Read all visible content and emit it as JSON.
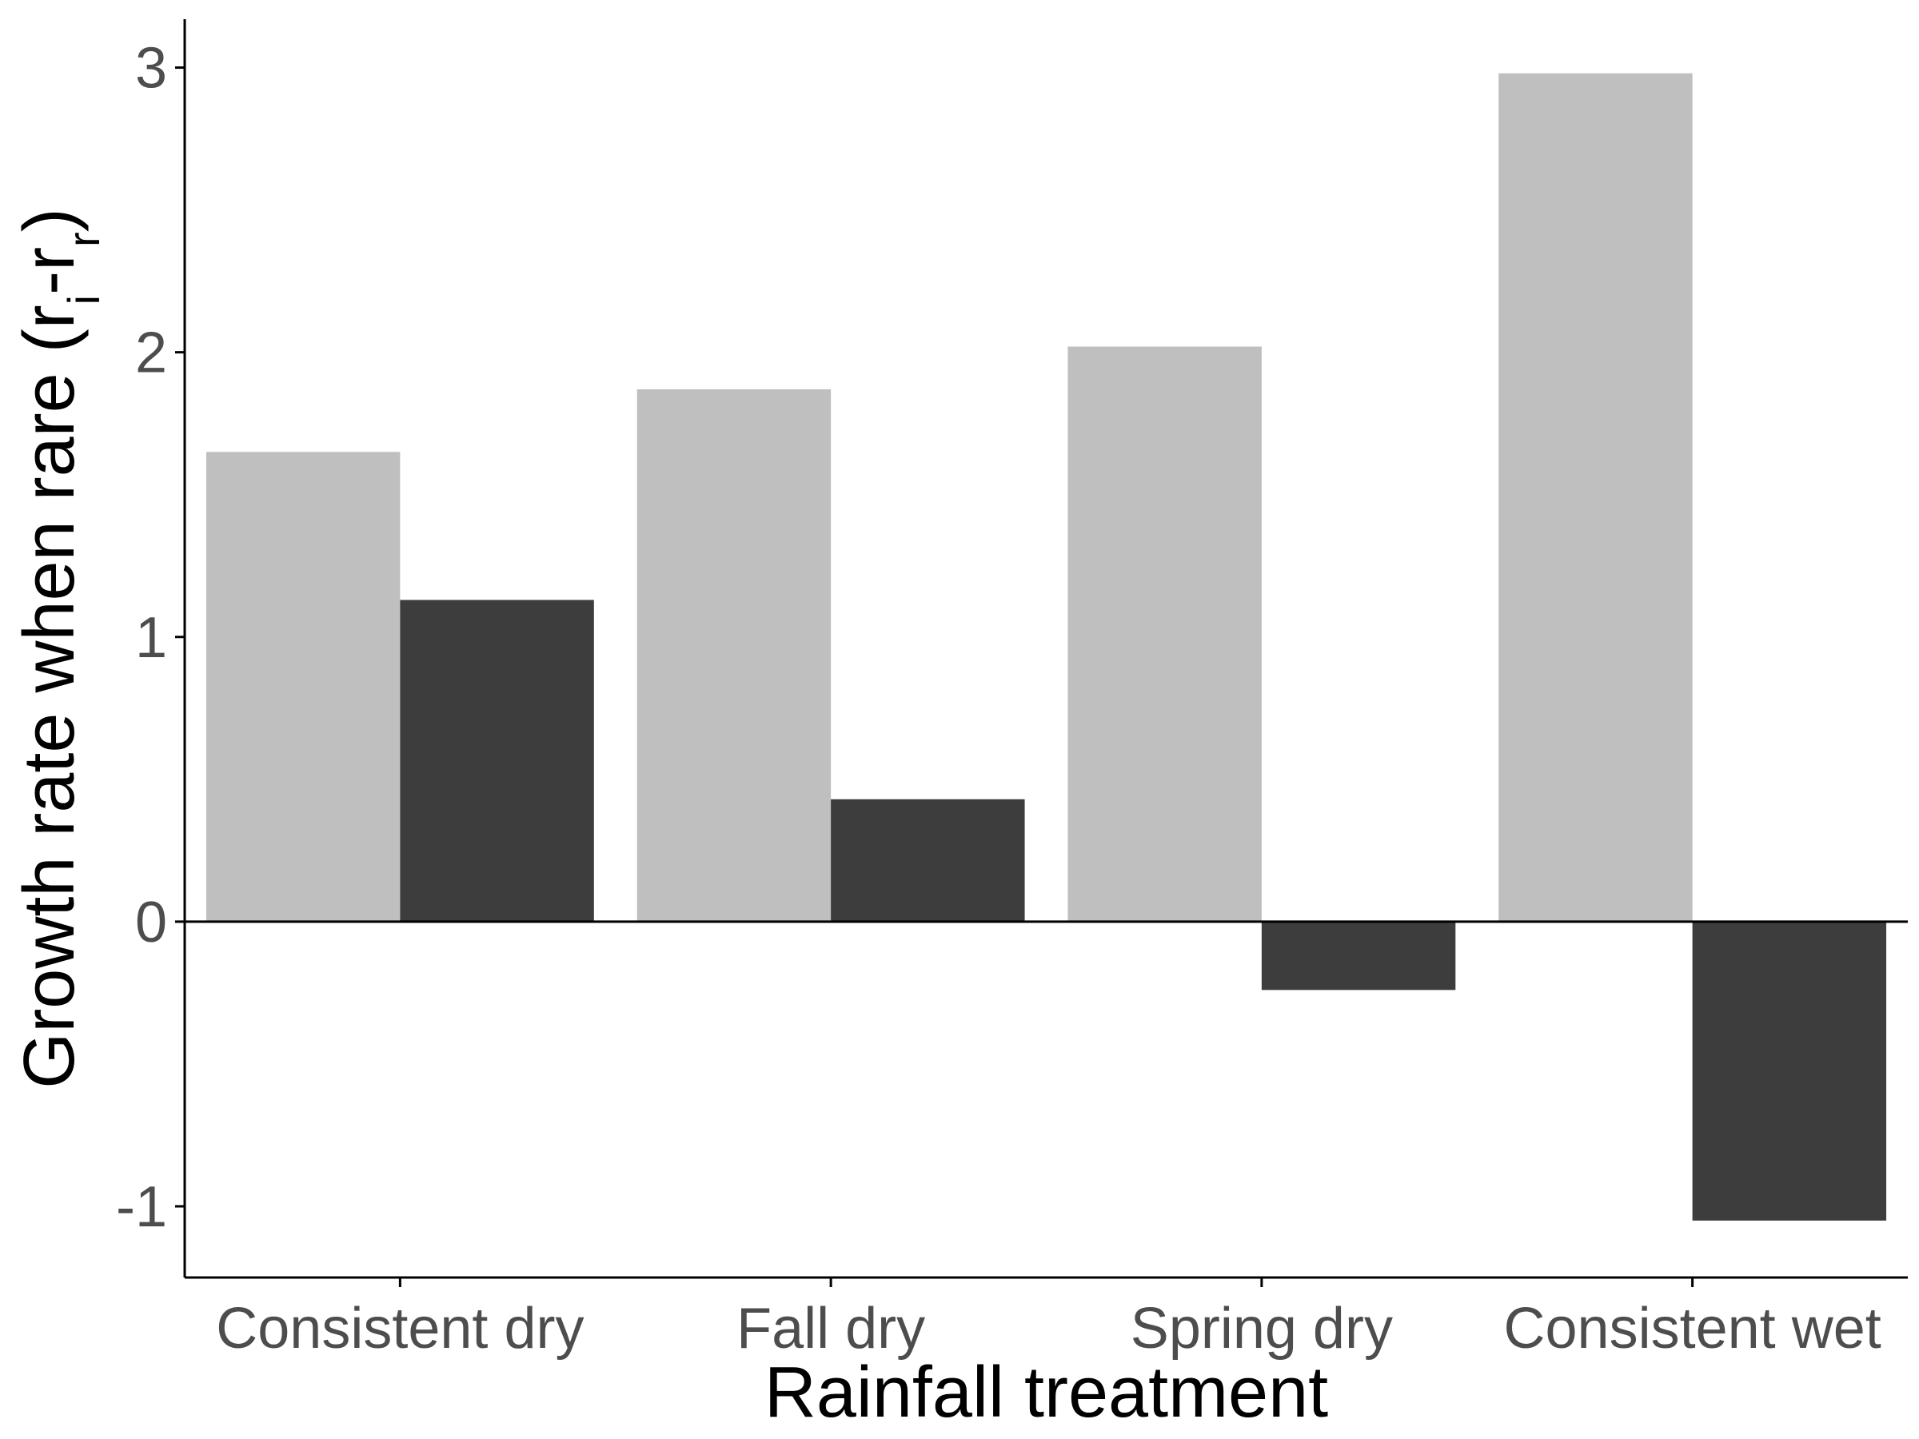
{
  "chart_data": {
    "type": "bar",
    "title": "",
    "xlabel": "Rainfall treatment",
    "ylabel": {
      "text": "Growth rate when rare (r",
      "sub1": "i",
      "mid": "-r",
      "sub2": "r",
      "end": ")"
    },
    "categories": [
      "Consistent dry",
      "Fall dry",
      "Spring dry",
      "Consistent wet"
    ],
    "series": [
      {
        "color": "#bfbfbf",
        "values": [
          1.65,
          1.87,
          2.02,
          2.98
        ]
      },
      {
        "color": "#3d3d3d",
        "values": [
          1.13,
          0.43,
          -0.24,
          -1.05
        ]
      }
    ],
    "ylim": [
      -1.25,
      3.17
    ],
    "yticks": [
      -1,
      0,
      1,
      2,
      3
    ],
    "ytick_labels": [
      "-1",
      "0",
      "1",
      "2",
      "3"
    ],
    "zero_line": true,
    "grid": false,
    "legend": "none"
  }
}
